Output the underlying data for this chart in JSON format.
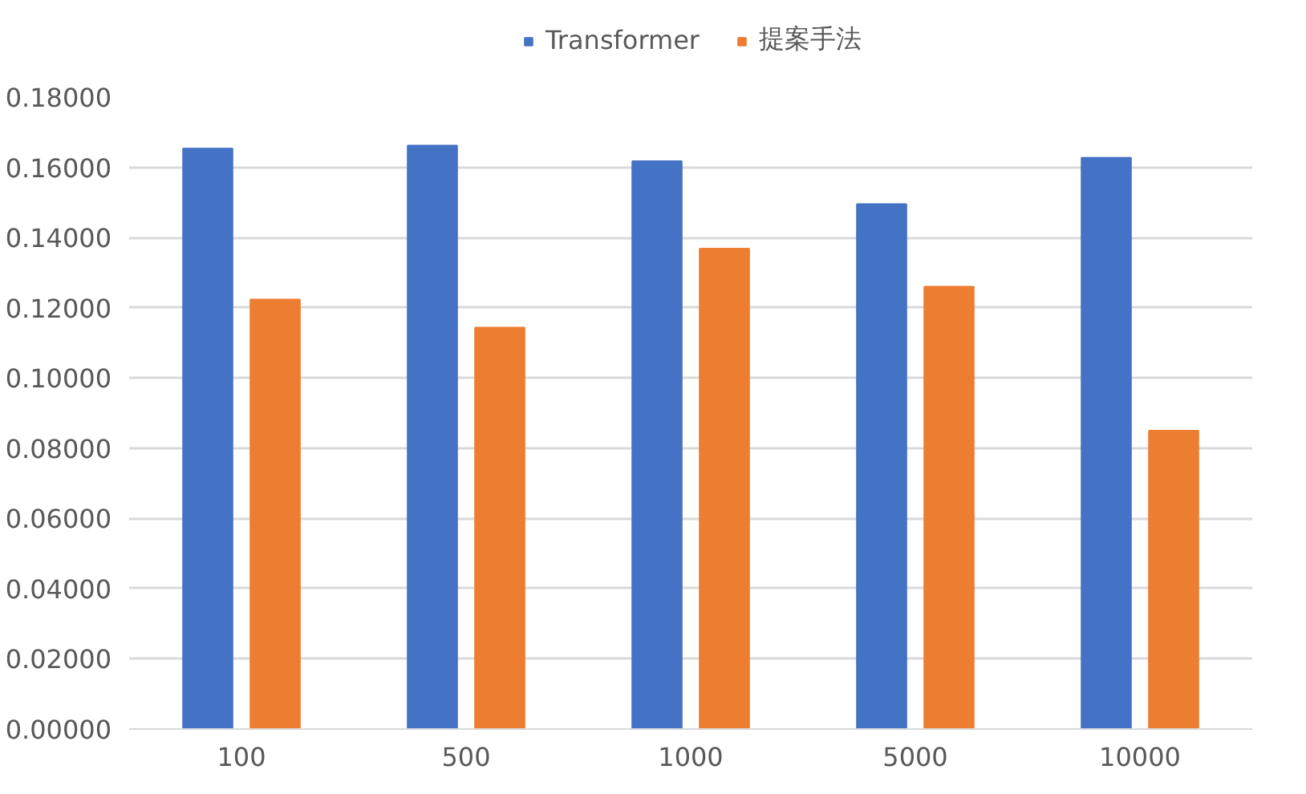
{
  "chart_data": {
    "type": "bar",
    "categories": [
      "100",
      "500",
      "1000",
      "5000",
      "10000"
    ],
    "series": [
      {
        "name": "Transformer",
        "color": "#4472c4",
        "values": [
          0.1653,
          0.1662,
          0.1617,
          0.1495,
          0.1627
        ]
      },
      {
        "name": "提案手法",
        "color": "#ed7d31",
        "values": [
          0.1223,
          0.1143,
          0.1368,
          0.126,
          0.085
        ]
      }
    ],
    "ylim": [
      0,
      0.18
    ],
    "yticks": [
      {
        "value": 0,
        "label": "0.00000"
      },
      {
        "value": 0.02,
        "label": "0.02000"
      },
      {
        "value": 0.04,
        "label": "0.04000"
      },
      {
        "value": 0.06,
        "label": "0.06000"
      },
      {
        "value": 0.08,
        "label": "0.08000"
      },
      {
        "value": 0.1,
        "label": "0.10000"
      },
      {
        "value": 0.12,
        "label": "0.12000"
      },
      {
        "value": 0.14,
        "label": "0.14000"
      },
      {
        "value": 0.16,
        "label": "0.16000"
      },
      {
        "value": 0.18,
        "label": "0.18000"
      }
    ],
    "grid": "y",
    "legend": "top"
  }
}
